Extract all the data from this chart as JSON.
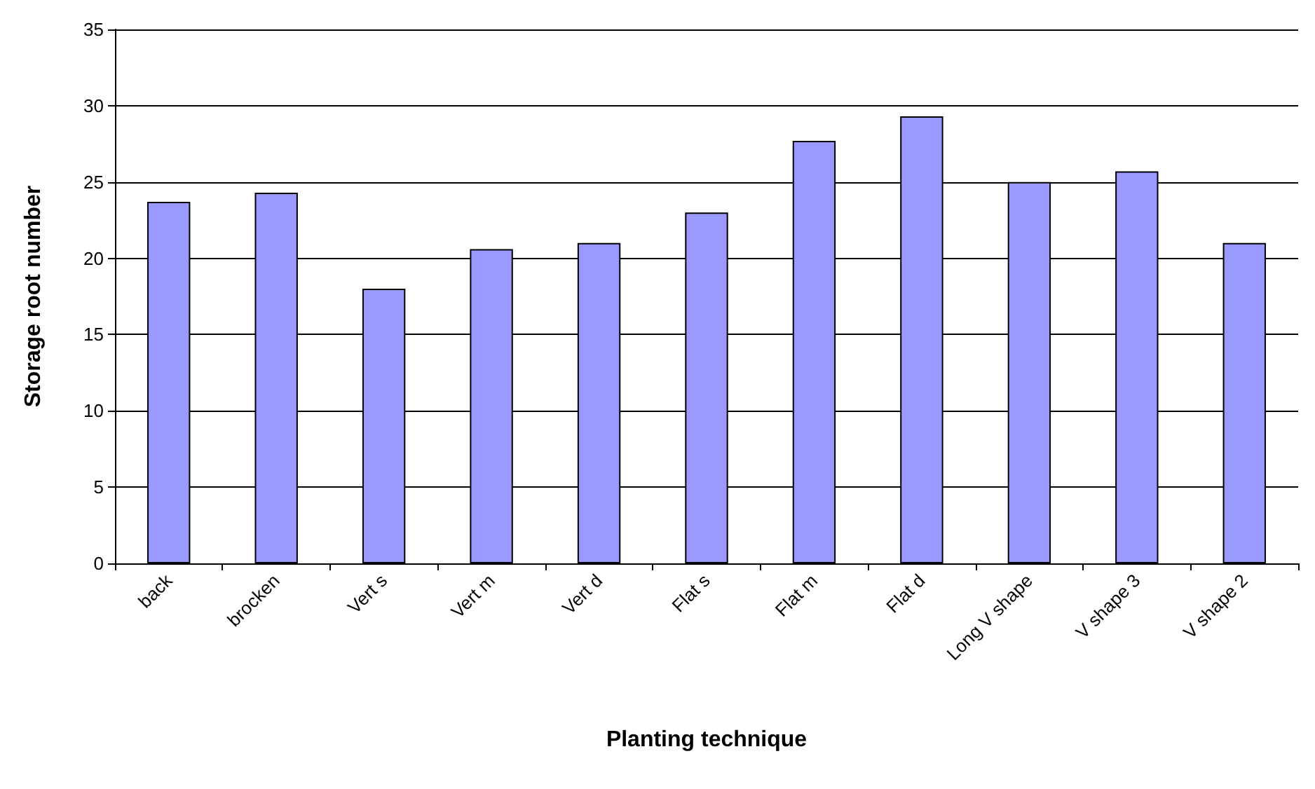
{
  "chart_data": {
    "type": "bar",
    "xlabel": "Planting technique",
    "ylabel": "Storage root number",
    "categories": [
      "back",
      "brocken",
      "Vert s",
      "Vert m",
      "Vert d",
      "Flat s",
      "Flat m",
      "Flat d",
      "Long V shape",
      "V shape 3",
      "V shape 2"
    ],
    "values": [
      23.7,
      24.3,
      18.0,
      20.6,
      21.0,
      23.0,
      27.7,
      29.3,
      25.0,
      25.7,
      21.0
    ],
    "color": "#9999ff",
    "ylim": [
      0,
      35
    ],
    "yticks": [
      0,
      5,
      10,
      15,
      20,
      25,
      30,
      35
    ],
    "grid": "y"
  }
}
